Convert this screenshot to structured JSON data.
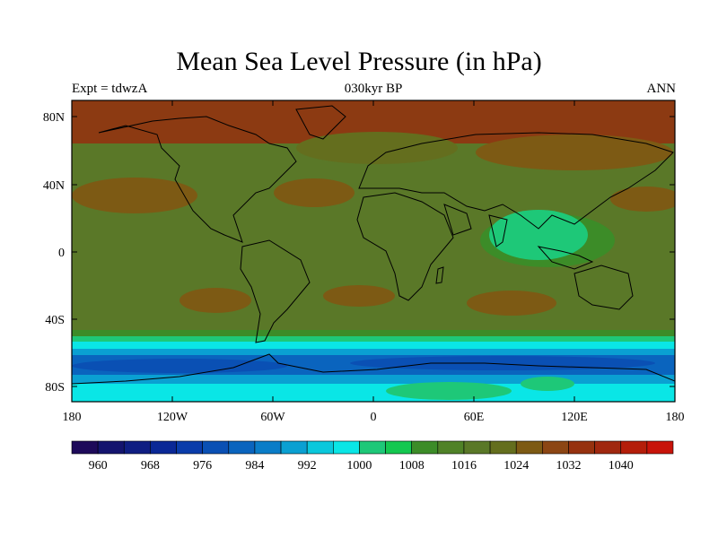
{
  "title": "Mean Sea Level Pressure (in hPa)",
  "left_label": "Expt = tdwzA",
  "center_label": "030kyr BP",
  "right_label": "ANN",
  "lat_ticks": [
    "80N",
    "40N",
    "0",
    "40S",
    "80S"
  ],
  "lon_ticks": [
    "180",
    "120W",
    "60W",
    "0",
    "60E",
    "120E",
    "180"
  ],
  "colorbar": {
    "labels": [
      "960",
      "968",
      "976",
      "984",
      "992",
      "1000",
      "1008",
      "1016",
      "1024",
      "1032",
      "1040"
    ],
    "colors": [
      "#1e0a5a",
      "#14146e",
      "#0f1e82",
      "#0a2896",
      "#0a3caa",
      "#0a50b4",
      "#0a64be",
      "#0a7dc8",
      "#0aa0d2",
      "#0ac8dc",
      "#0ae6e6",
      "#1ec878",
      "#14c850",
      "#3c8c28",
      "#508228",
      "#5a7828",
      "#646e1e",
      "#7d5a14",
      "#8c4614",
      "#96320f",
      "#a0280f",
      "#b41e0a",
      "#c8140a"
    ]
  },
  "map_colors": {
    "polar_high": "#8c3a12",
    "high": "#7d5a14",
    "mid": "#5a7828",
    "mid_dark": "#646e1e",
    "green": "#3c8c28",
    "light_green": "#1ec878",
    "cyan": "#0ae6e6",
    "light_blue": "#0aa0d2",
    "blue": "#0a64be",
    "dark_blue": "#0a50b4"
  }
}
